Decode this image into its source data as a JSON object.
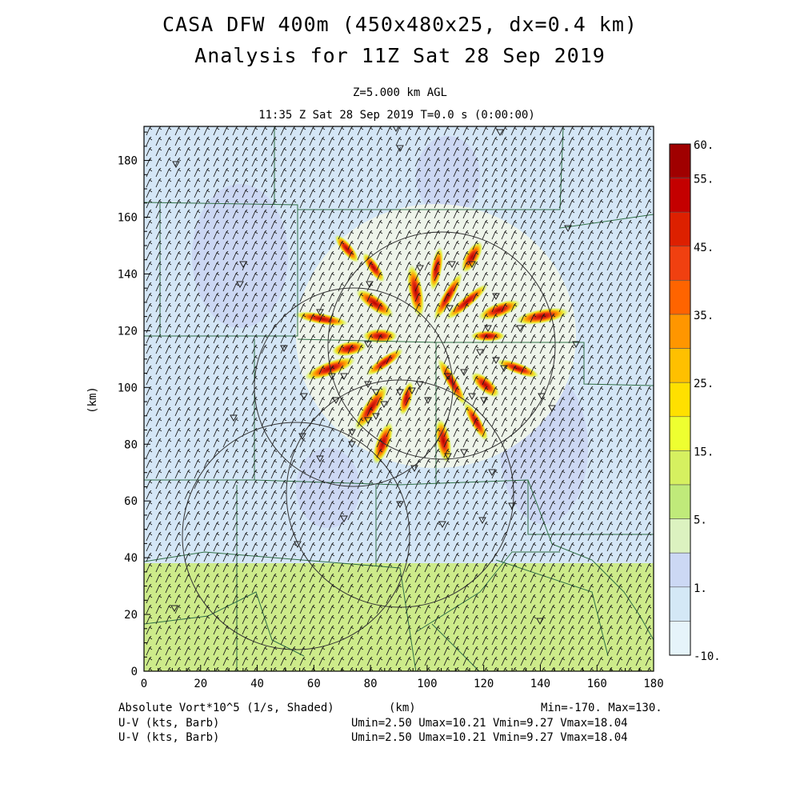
{
  "header": {
    "title_line1": "CASA DFW 400m (450x480x25, dx=0.4 km)",
    "title_line2": "Analysis for 11Z Sat 28 Sep 2019",
    "level": "Z=5.000 km AGL",
    "time": "11:35 Z Sat 28 Sep 2019   T=0.0 s (0:00:00)"
  },
  "axes": {
    "x_ticks": [
      "0",
      "20",
      "40",
      "60",
      "80",
      "100",
      "120",
      "140",
      "160",
      "180"
    ],
    "y_ticks": [
      "0",
      "20",
      "40",
      "60",
      "80",
      "100",
      "120",
      "140",
      "160",
      "180"
    ],
    "x_range": [
      0,
      180
    ],
    "y_range": [
      0,
      192
    ],
    "xlabel": "(km)",
    "ylabel": "(km)"
  },
  "colorbar": {
    "labels": [
      "60.",
      "55.",
      "45.",
      "35.",
      "25.",
      "15.",
      "5.",
      "1.",
      "-10."
    ],
    "colors": [
      "#a00000",
      "#c40000",
      "#dd2000",
      "#f04010",
      "#ff6400",
      "#ff9600",
      "#ffc000",
      "#ffe000",
      "#eeff30",
      "#d6f060",
      "#c0ea7a",
      "#dcf2c0",
      "#ccd8f4",
      "#d4e8f6",
      "#e6f4fa"
    ]
  },
  "footer": {
    "left1": "Absolute Vort*10^5 (1/s, Shaded)",
    "left2": "U-V (kts, Barb)",
    "left3": "U-V (kts, Barb)",
    "center": "(km)",
    "right1": "Min=-170. Max=130.",
    "right2": "Umin=2.50 Umax=10.21 Vmin=9.27 Vmax=18.04",
    "right3": "Umin=2.50 Umax=10.21 Vmin=9.27 Vmax=18.04"
  }
}
